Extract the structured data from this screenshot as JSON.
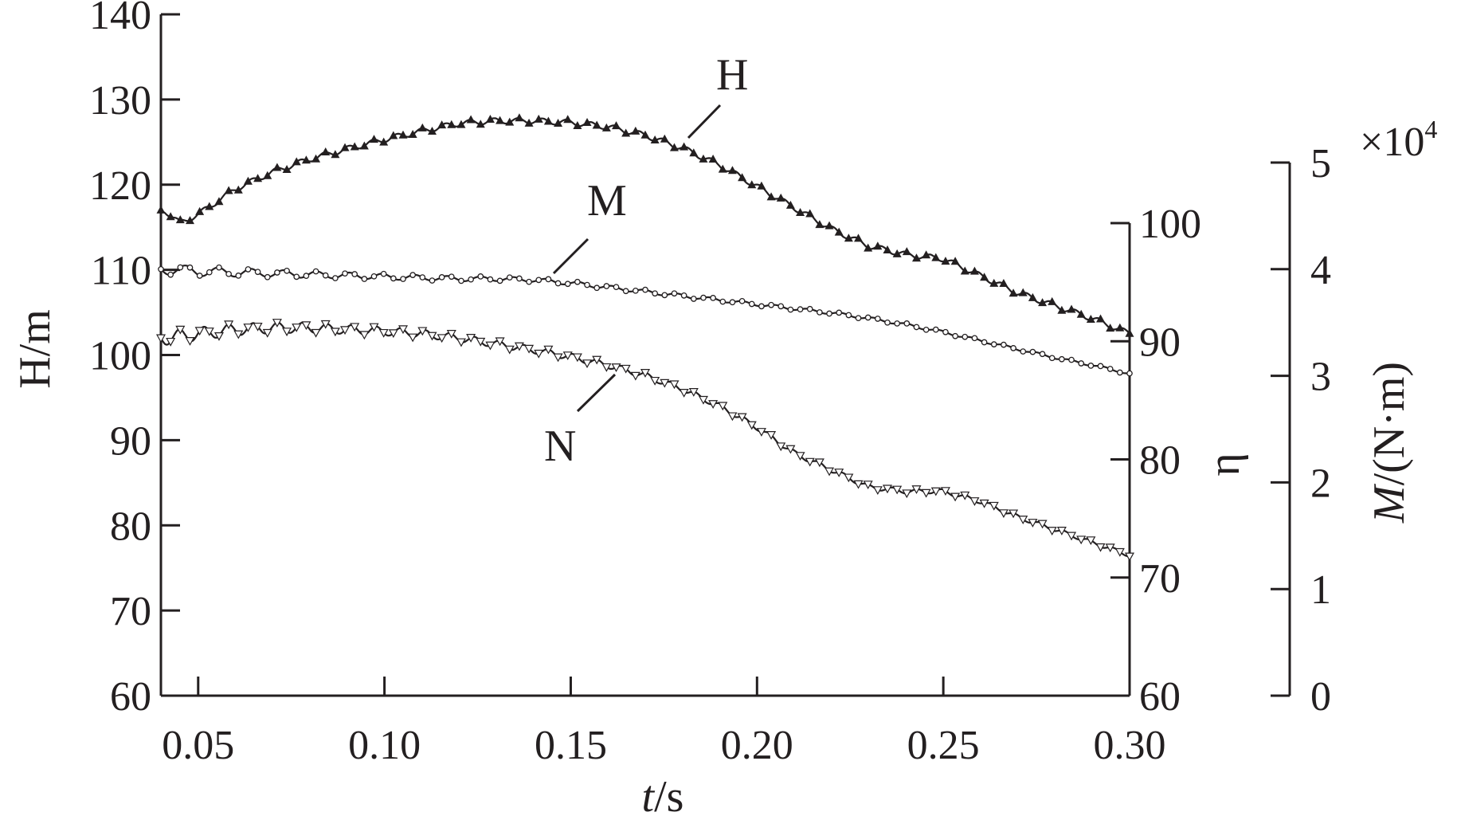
{
  "chart_data": {
    "type": "line",
    "title": "",
    "x": {
      "label_italic": "t",
      "label_rest": "/s",
      "range": [
        0.04,
        0.3
      ],
      "ticks": [
        0.05,
        0.1,
        0.15,
        0.2,
        0.25,
        0.3
      ],
      "tick_labels": [
        "0.05",
        "0.10",
        "0.15",
        "0.20",
        "0.25",
        "0.30"
      ]
    },
    "y_left": {
      "label": "H/m",
      "range": [
        60,
        140
      ],
      "ticks": [
        60,
        70,
        80,
        90,
        100,
        110,
        120,
        130,
        140
      ],
      "tick_labels": [
        "60",
        "70",
        "80",
        "90",
        "100",
        "110",
        "120",
        "130",
        "140"
      ]
    },
    "y_right_eta": {
      "label": "η",
      "range": [
        60,
        100
      ],
      "ticks": [
        60,
        70,
        80,
        90,
        100
      ],
      "tick_labels": [
        "60",
        "70",
        "80",
        "90",
        "100"
      ]
    },
    "y_right_m": {
      "label_italic": "M",
      "label_rest": "/(N·m)",
      "multiplier_base": "×10",
      "multiplier_exp": "4",
      "range": [
        0,
        5
      ],
      "ticks": [
        0,
        1,
        2,
        3,
        4,
        5
      ],
      "tick_labels": [
        "0",
        "1",
        "2",
        "3",
        "4",
        "5"
      ]
    },
    "series": [
      {
        "name": "H",
        "axis": "y_left",
        "marker": "triangle-up",
        "color": "#231f20",
        "x": [
          0.041,
          0.045,
          0.05,
          0.055,
          0.06,
          0.07,
          0.08,
          0.09,
          0.1,
          0.11,
          0.12,
          0.13,
          0.14,
          0.15,
          0.16,
          0.17,
          0.18,
          0.19,
          0.2,
          0.21,
          0.22,
          0.23,
          0.24,
          0.25,
          0.26,
          0.27,
          0.28,
          0.29,
          0.3
        ],
        "y": [
          117,
          115.5,
          116.5,
          118,
          119.5,
          121.5,
          123,
          124.2,
          125.3,
          126.3,
          127.2,
          127.5,
          127.5,
          127.3,
          126.8,
          125.8,
          124.3,
          122.3,
          119.8,
          117.3,
          114.8,
          112.8,
          111.8,
          111.3,
          109.3,
          107.3,
          105.8,
          104.3,
          102.5
        ]
      },
      {
        "name": "M",
        "axis": "y_right_m",
        "marker": "circle",
        "color": "#231f20",
        "x": [
          0.041,
          0.05,
          0.06,
          0.07,
          0.08,
          0.09,
          0.1,
          0.11,
          0.12,
          0.13,
          0.14,
          0.15,
          0.16,
          0.17,
          0.18,
          0.19,
          0.2,
          0.21,
          0.22,
          0.23,
          0.24,
          0.25,
          0.26,
          0.27,
          0.28,
          0.29,
          0.3
        ],
        "y": [
          4.0,
          3.98,
          3.97,
          3.96,
          3.95,
          3.94,
          3.93,
          3.92,
          3.91,
          3.91,
          3.9,
          3.87,
          3.83,
          3.79,
          3.75,
          3.71,
          3.67,
          3.63,
          3.59,
          3.54,
          3.48,
          3.41,
          3.33,
          3.25,
          3.17,
          3.1,
          3.02
        ]
      },
      {
        "name": "N",
        "axis": "y_left",
        "marker": "triangle-down",
        "color": "#231f20",
        "x": [
          0.041,
          0.05,
          0.06,
          0.07,
          0.08,
          0.09,
          0.1,
          0.11,
          0.12,
          0.13,
          0.14,
          0.15,
          0.16,
          0.17,
          0.18,
          0.19,
          0.2,
          0.21,
          0.22,
          0.23,
          0.24,
          0.25,
          0.26,
          0.27,
          0.28,
          0.29,
          0.3
        ],
        "y": [
          102,
          102.5,
          103,
          103.2,
          103.2,
          103,
          102.8,
          102.5,
          102,
          101.3,
          100.6,
          99.8,
          98.8,
          97.6,
          96.0,
          94.0,
          91.5,
          88.5,
          86.5,
          84.5,
          84.0,
          84.0,
          82.8,
          81.0,
          79.5,
          78.0,
          76.5
        ]
      }
    ]
  }
}
